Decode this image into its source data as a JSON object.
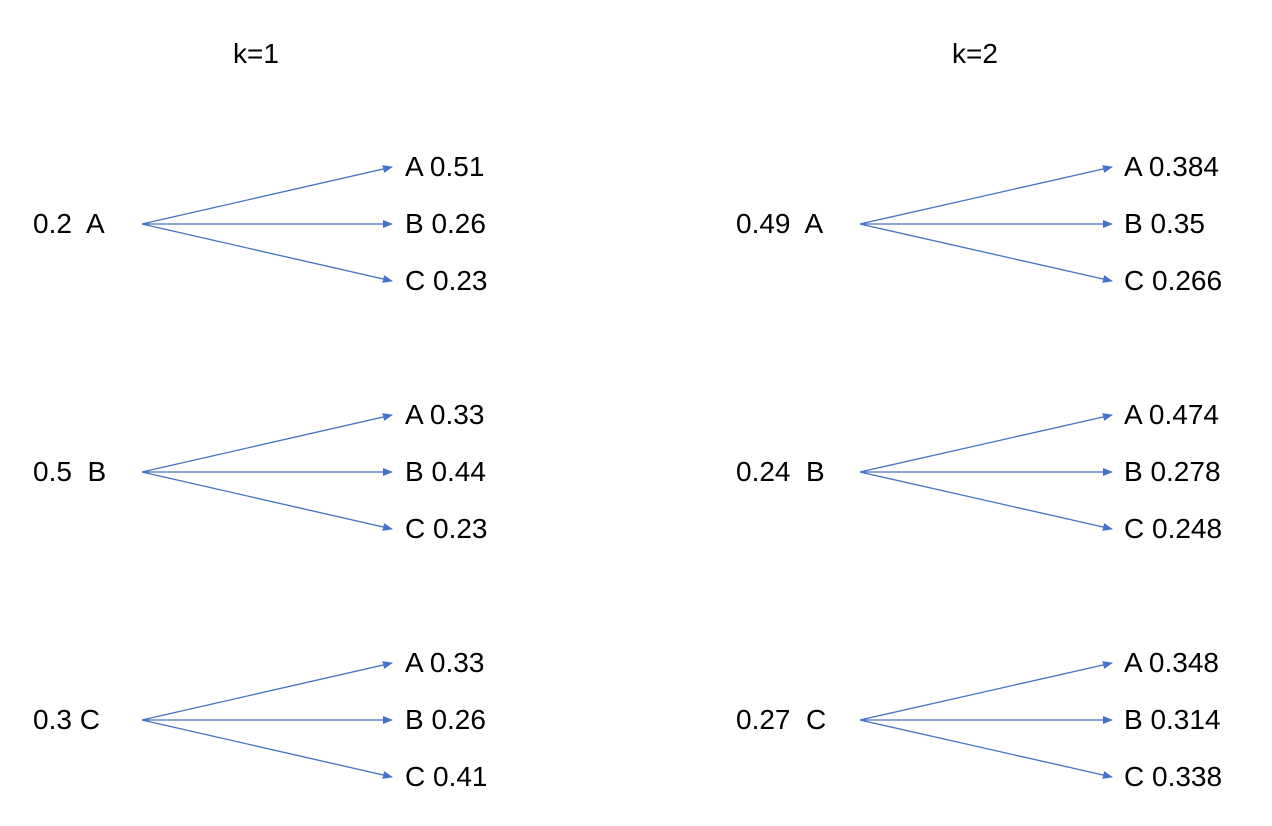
{
  "colors": {
    "arrow": "#4472c4",
    "text": "#000000",
    "background": "#ffffff"
  },
  "diagrams": [
    {
      "heading": "k=1",
      "groups": [
        {
          "source": "0.2  A",
          "targets": [
            "A 0.51",
            "B 0.26",
            "C 0.23"
          ]
        },
        {
          "source": "0.5  B",
          "targets": [
            "A 0.33",
            "B 0.44",
            "C 0.23"
          ]
        },
        {
          "source": "0.3 C",
          "targets": [
            "A 0.33",
            "B 0.26",
            "C 0.41"
          ]
        }
      ]
    },
    {
      "heading": "k=2",
      "groups": [
        {
          "source": "0.49  A",
          "targets": [
            "A 0.384",
            "B 0.35",
            "C 0.266"
          ]
        },
        {
          "source": "0.24  B",
          "targets": [
            "A 0.474",
            "B 0.278",
            "C 0.248"
          ]
        },
        {
          "source": "0.27  C",
          "targets": [
            "A 0.348",
            "B 0.314",
            "C 0.338"
          ]
        }
      ]
    }
  ]
}
